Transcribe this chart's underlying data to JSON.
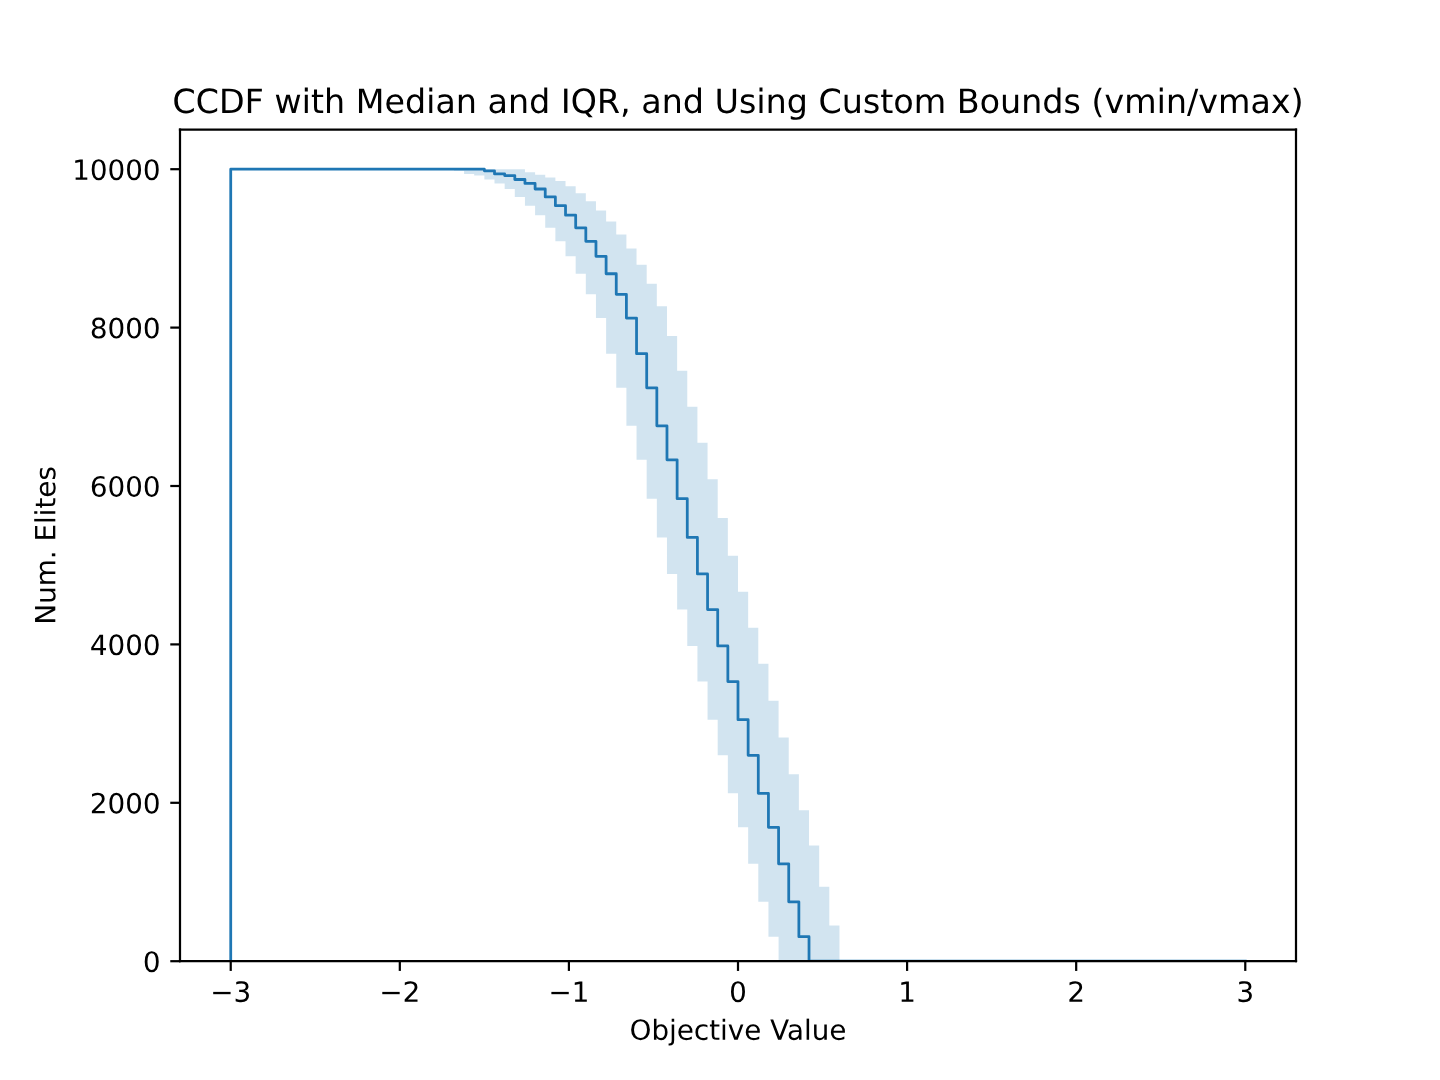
{
  "chart_data": {
    "type": "step",
    "title": "CCDF with Median and IQR, and Using Custom Bounds (vmin/vmax)",
    "xlabel": "Objective Value",
    "ylabel": "Num. Elites",
    "x": [
      -3,
      -3,
      -1.74,
      -1.68,
      -1.62,
      -1.56,
      -1.5,
      -1.44,
      -1.38,
      -1.32,
      -1.26,
      -1.2,
      -1.14,
      -1.08,
      -1.02,
      -0.96,
      -0.9,
      -0.84,
      -0.78,
      -0.72,
      -0.66,
      -0.6,
      -0.54,
      -0.48,
      -0.42,
      -0.36,
      -0.3,
      -0.24,
      -0.18,
      -0.12,
      -0.06,
      0,
      0.06,
      0.12,
      0.18,
      0.24,
      0.3,
      0.36,
      0.42,
      0.48,
      0.54,
      0.6,
      3
    ],
    "series": [
      {
        "color": "#1f77b4",
        "values": [
          0,
          10000,
          10000,
          10000,
          10000,
          10000,
          9980,
          9940,
          9920,
          9870,
          9820,
          9750,
          9650,
          9540,
          9420,
          9260,
          9090,
          8900,
          8680,
          8420,
          8120,
          7670,
          7240,
          6760,
          6330,
          5840,
          5350,
          4890,
          4440,
          3980,
          3530,
          3050,
          2600,
          2120,
          1690,
          1230,
          750,
          310,
          0,
          0,
          0,
          0,
          0
        ],
        "upper": [
          0,
          10000,
          10000,
          10000,
          10000,
          10000,
          10000,
          10000,
          10000,
          10000,
          9960,
          9930,
          9895,
          9850,
          9785,
          9695,
          9595,
          9480,
          9340,
          9175,
          9000,
          8795,
          8555,
          8270,
          7895,
          7455,
          7000,
          6545,
          6085,
          5595,
          5120,
          4665,
          4210,
          3755,
          3290,
          2825,
          2360,
          1905,
          1460,
          940,
          450,
          0,
          0
        ],
        "lower": [
          0,
          10000,
          10000,
          9980,
          9940,
          9920,
          9870,
          9820,
          9750,
          9650,
          9540,
          9420,
          9260,
          9090,
          8900,
          8680,
          8420,
          8120,
          7670,
          7240,
          6760,
          6330,
          5840,
          5350,
          4890,
          4440,
          3980,
          3530,
          3050,
          2600,
          2120,
          1690,
          1230,
          750,
          310,
          0,
          0,
          0,
          0,
          0,
          0,
          0,
          0
        ]
      }
    ],
    "xlim": [
      -3.3,
      3.3
    ],
    "ylim": [
      0,
      10500
    ],
    "xticks": [
      -3,
      -2,
      -1,
      0,
      1,
      2,
      3
    ],
    "yticks": [
      0,
      2000,
      4000,
      6000,
      8000,
      10000
    ],
    "grid": false,
    "legend": false
  }
}
